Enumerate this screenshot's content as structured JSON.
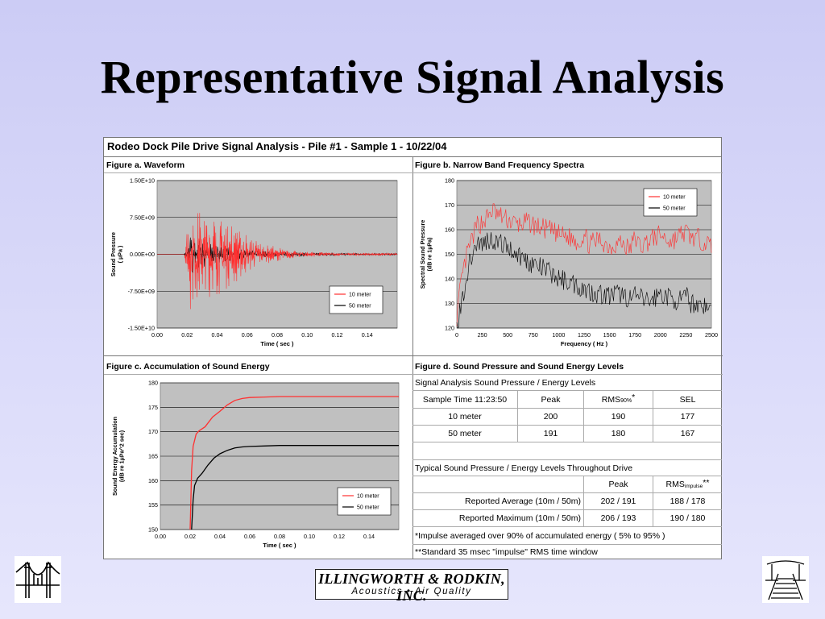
{
  "slide": {
    "title": "Representative Signal Analysis"
  },
  "panel": {
    "title": "Rodeo Dock Pile Drive Signal Analysis - Pile #1 - Sample 1 - 10/22/04",
    "fig_a_title": "Figure a. Waveform",
    "fig_b_title": "Figure b. Narrow Band Frequency Spectra",
    "fig_c_title": "Figure c. Accumulation of Sound Energy",
    "fig_d_title": "Figure d. Sound Pressure and Sound Energy Levels"
  },
  "table": {
    "section1_title": "Signal Analysis Sound Pressure / Energy Levels",
    "header": [
      "Sample Time 11:23:50",
      "Peak",
      "RMS",
      "90%",
      "*",
      "SEL"
    ],
    "rows": [
      [
        "10 meter",
        "200",
        "190",
        "177"
      ],
      [
        "50 meter",
        "191",
        "180",
        "167"
      ]
    ],
    "section2_title": "Typical Sound Pressure / Energy Levels Throughout Drive",
    "header2": [
      "Peak",
      "RMS",
      "impulse",
      "**"
    ],
    "rows2": [
      [
        "Reported Average (10m / 50m)",
        "202 / 191",
        "188 / 178"
      ],
      [
        "Reported Maximum (10m / 50m)",
        "206 / 193",
        "190 / 180"
      ]
    ],
    "footnote1": "*Impulse averaged over 90% of accumulated energy ( 5% to 95% )",
    "footnote2": "**Standard 35 msec \"impulse\" RMS time window"
  },
  "logo": {
    "main": "ILLINGWORTH & RODKIN, INC.",
    "sub": "Acoustics • Air Quality",
    "left_icon": "bridge-icon",
    "right_icon": "pier-icon"
  },
  "colors": {
    "series_10m": "#ff3030",
    "series_50m": "#000000",
    "plot_bg": "#c0c0c0"
  },
  "chart_data": [
    {
      "type": "line",
      "title": "Figure a. Waveform",
      "xlabel": "Time ( sec )",
      "ylabel": "Sound Pressure ( µPa )",
      "xlim": [
        0,
        0.16
      ],
      "ylim": [
        -15000000000,
        15000000000
      ],
      "xticks": [
        "0.00",
        "0.02",
        "0.04",
        "0.06",
        "0.08",
        "0.10",
        "0.12",
        "0.14"
      ],
      "yticks": [
        "1.50E+10",
        "7.50E+09",
        "0.00E+00",
        "-7.50E+09",
        "-1.50E+10"
      ],
      "legend_position": "bottom-right",
      "series": [
        {
          "name": "10 meter",
          "color": "#ff3030",
          "envelope_x": [
            0.0,
            0.018,
            0.02,
            0.022,
            0.025,
            0.03,
            0.04,
            0.05,
            0.06,
            0.07,
            0.08,
            0.09,
            0.1,
            0.11,
            0.13,
            0.16
          ],
          "envelope_y": [
            0,
            0,
            5000000000,
            9800000000,
            8500000000,
            7500000000,
            7000000000,
            5500000000,
            3500000000,
            2000000000,
            1200000000,
            700000000,
            500000000,
            350000000,
            250000000,
            200000000
          ]
        },
        {
          "name": "50 meter",
          "color": "#000000",
          "envelope_x": [
            0.0,
            0.018,
            0.02,
            0.022,
            0.025,
            0.03,
            0.04,
            0.05,
            0.06,
            0.07,
            0.08,
            0.1,
            0.13,
            0.16
          ],
          "envelope_y": [
            0,
            0,
            1000000000,
            3500000000,
            3000000000,
            2500000000,
            1800000000,
            1200000000,
            800000000,
            600000000,
            450000000,
            300000000,
            200000000,
            150000000
          ]
        }
      ]
    },
    {
      "type": "line",
      "title": "Figure b. Narrow Band Frequency Spectra",
      "xlabel": "Frequency ( Hz )",
      "ylabel": "Spectral Sound Pressure (dB re 1µPa)",
      "xlim": [
        0,
        2500
      ],
      "ylim": [
        120,
        180
      ],
      "xticks": [
        "0",
        "250",
        "500",
        "750",
        "1000",
        "1250",
        "1500",
        "1750",
        "2000",
        "2250",
        "2500"
      ],
      "yticks": [
        "180",
        "170",
        "160",
        "150",
        "140",
        "130",
        "120"
      ],
      "legend_position": "top-right",
      "series": [
        {
          "name": "10 meter",
          "color": "#ff3030",
          "x": [
            0,
            50,
            100,
            150,
            200,
            250,
            300,
            350,
            400,
            500,
            600,
            700,
            750,
            800,
            900,
            1000,
            1100,
            1200,
            1250,
            1300,
            1400,
            1500,
            1600,
            1700,
            1750,
            1800,
            1900,
            2000,
            2100,
            2200,
            2250,
            2300,
            2400,
            2500
          ],
          "y": [
            125,
            140,
            150,
            156,
            162,
            163,
            165,
            168,
            166,
            164,
            162,
            163,
            162,
            161,
            160,
            158,
            157,
            155,
            158,
            154,
            156,
            153,
            155,
            152,
            157,
            153,
            156,
            158,
            155,
            158,
            159,
            157,
            156,
            153
          ]
        },
        {
          "name": "50 meter",
          "color": "#000000",
          "x": [
            0,
            50,
            100,
            150,
            200,
            250,
            300,
            350,
            400,
            500,
            600,
            700,
            750,
            800,
            900,
            1000,
            1100,
            1200,
            1250,
            1300,
            1400,
            1500,
            1600,
            1700,
            1750,
            1800,
            1900,
            2000,
            2100,
            2200,
            2250,
            2300,
            2400,
            2500
          ],
          "y": [
            120,
            131,
            142,
            150,
            155,
            154,
            156,
            156,
            155,
            153,
            150,
            147,
            146,
            145,
            143,
            140,
            139,
            137,
            136,
            135,
            134,
            133,
            134,
            132,
            133,
            132,
            131,
            134,
            132,
            131,
            133,
            130,
            130,
            127
          ]
        }
      ]
    },
    {
      "type": "line",
      "title": "Figure c. Accumulation of Sound Energy",
      "xlabel": "Time ( sec )",
      "ylabel": "Sound Energy Accumulation (dB re 1µPa^2 sec)",
      "xlim": [
        0,
        0.16
      ],
      "ylim": [
        150,
        180
      ],
      "xticks": [
        "0.00",
        "0.02",
        "0.04",
        "0.06",
        "0.08",
        "0.10",
        "0.12",
        "0.14"
      ],
      "yticks": [
        "180",
        "175",
        "170",
        "165",
        "160",
        "155",
        "150"
      ],
      "legend_position": "bottom-right",
      "series": [
        {
          "name": "10 meter",
          "color": "#ff3030",
          "x": [
            0.02,
            0.021,
            0.022,
            0.024,
            0.026,
            0.03,
            0.035,
            0.04,
            0.045,
            0.05,
            0.055,
            0.06,
            0.07,
            0.08,
            0.1,
            0.13,
            0.16
          ],
          "y": [
            150,
            162,
            167,
            169.5,
            170.2,
            171.0,
            173.0,
            174.2,
            175.5,
            176.4,
            176.8,
            177.0,
            177.1,
            177.2,
            177.2,
            177.2,
            177.2
          ]
        },
        {
          "name": "50 meter",
          "color": "#000000",
          "x": [
            0.021,
            0.022,
            0.023,
            0.025,
            0.028,
            0.032,
            0.036,
            0.04,
            0.045,
            0.05,
            0.055,
            0.06,
            0.07,
            0.08,
            0.1,
            0.13,
            0.16
          ],
          "y": [
            150,
            156,
            159,
            160.5,
            161.5,
            163.2,
            164.6,
            165.5,
            166.2,
            166.7,
            166.9,
            167.0,
            167.1,
            167.2,
            167.2,
            167.2,
            167.2
          ]
        }
      ]
    }
  ]
}
